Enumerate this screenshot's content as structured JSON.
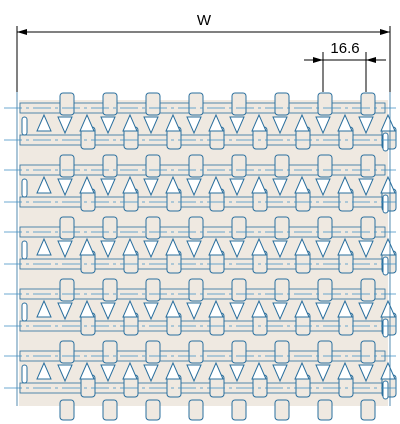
{
  "drawing": {
    "overall_width_label": "W",
    "pitch_label": "16.6"
  },
  "colors": {
    "belt_fill": "#efe9e1",
    "belt_edge": "#2a6f9e",
    "centerline": "#3c8fc2",
    "background": "#ffffff",
    "dimension_line": "#000000"
  }
}
